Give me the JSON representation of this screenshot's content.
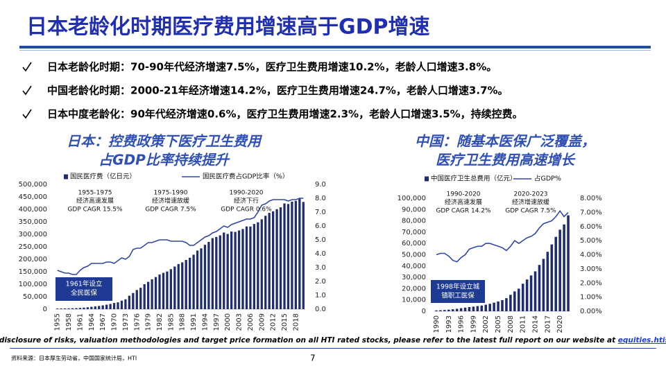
{
  "slide": {
    "title": "日本老龄化时期医疗费用增速高于GDP增速",
    "bullets": [
      "日本老龄化时期：70-90年代经济增速7.5%，医疗卫生费用增速10.2%，老龄人口增速3.8%。",
      "中国老龄化时期：2000-21年经济增速14.2%，医疗卫生费用增速24.7%，老龄人口增速3.7%。",
      "日本中度老龄化：90年代经济增速0.6%，医疗卫生费用增速2.3%，老龄人口增速3.5%，持续控费。"
    ],
    "disclaimer": "For full disclosure of risks, valuation methodologies and target price formation on all HTI rated stocks, please refer to the latest full report on our website at ",
    "link": "equities.htisec.com",
    "source": "资料来源：日本厚生劳动省，中国国家统计局，HTI",
    "page": "7"
  },
  "chart_data": [
    {
      "type": "bar-line",
      "title": [
        "日本：控费政策下医疗卫生费用",
        "占GDP比率持续提升"
      ],
      "categories": [
        "1955",
        null,
        null,
        "1958",
        null,
        null,
        "1961",
        null,
        null,
        "1964",
        null,
        null,
        "1967",
        null,
        null,
        "1970",
        null,
        null,
        "1973",
        null,
        null,
        "1976",
        null,
        null,
        "1979",
        null,
        null,
        "1982",
        null,
        null,
        "1985",
        null,
        null,
        "1988",
        null,
        null,
        "1991",
        null,
        null,
        "1994",
        null,
        null,
        "1997",
        null,
        null,
        "2000",
        null,
        null,
        "2003",
        null,
        null,
        "2006",
        null,
        null,
        "2009",
        null,
        null,
        "2012",
        null,
        null,
        "2015",
        null,
        null,
        "2018",
        null,
        null
      ],
      "series": [
        {
          "name": "国民医疗费（亿日元）",
          "color": "#1f2d6e",
          "values": [
            2388,
            2583,
            2897,
            3230,
            3625,
            4095,
            5130,
            6132,
            7541,
            9389,
            11224,
            13002,
            15116,
            18016,
            20780,
            24962,
            27250,
            33994,
            39496,
            53786,
            64779,
            76684,
            85686,
            100042,
            109510,
            119805,
            128709,
            138659,
            145438,
            150932,
            160159,
            170690,
            180759,
            187554,
            197290,
            206074,
            218260,
            234784,
            243631,
            257908,
            269577,
            284542,
            289149,
            295823,
            307019,
            301418,
            310998,
            309507,
            315375,
            321111,
            331289,
            331276,
            341360,
            348084,
            360067,
            374202,
            385850,
            392117,
            400610,
            408071,
            423644,
            421381,
            430710,
            433949,
            443895,
            429665
          ]
        },
        {
          "name": "国民医疗费占GDP比率（%）",
          "color": "#2f45a8",
          "axis": "y2",
          "values": [
            2.8,
            2.7,
            2.6,
            2.6,
            2.5,
            2.5,
            2.8,
            3.0,
            3.1,
            3.3,
            3.3,
            3.3,
            3.3,
            3.4,
            3.4,
            3.3,
            3.5,
            3.7,
            3.6,
            3.8,
            4.3,
            4.4,
            4.4,
            4.6,
            4.8,
            4.8,
            4.9,
            5.0,
            5.0,
            5.0,
            4.9,
            4.9,
            4.9,
            4.9,
            4.8,
            4.6,
            4.6,
            4.8,
            5.0,
            5.2,
            5.3,
            5.5,
            5.6,
            5.8,
            6.0,
            5.9,
            6.1,
            6.2,
            6.3,
            6.4,
            6.5,
            6.5,
            6.6,
            7.0,
            7.5,
            7.6,
            7.8,
            7.9,
            7.9,
            7.9,
            7.9,
            7.8,
            7.9,
            7.9,
            8.0,
            8.0
          ]
        }
      ],
      "ylim": [
        0,
        500000
      ],
      "yticks": [
        0,
        {
          "value": 50000,
          "label": "50,000"
        },
        {
          "value": 100000,
          "label": "100,000"
        },
        {
          "value": 150000,
          "label": "150,000"
        },
        {
          "value": 200000,
          "label": "200,000"
        },
        {
          "value": 250000,
          "label": "250,000"
        },
        {
          "value": 300000,
          "label": "300,000"
        },
        {
          "value": 350000,
          "label": "350,000"
        },
        {
          "value": 400000,
          "label": "400,000"
        },
        {
          "value": 450000,
          "label": "450,000"
        },
        {
          "value": 500000,
          "label": "500,000"
        }
      ],
      "y2lim": [
        0,
        9
      ],
      "y2ticks": [
        {
          "value": 0,
          "label": "0.0"
        },
        {
          "value": 1,
          "label": "1.0"
        },
        {
          "value": 2,
          "label": "2.0"
        },
        {
          "value": 3,
          "label": "3.0"
        },
        {
          "value": 4,
          "label": "4.0"
        },
        {
          "value": 5,
          "label": "5.0"
        },
        {
          "value": 6,
          "label": "6.0"
        },
        {
          "value": 7,
          "label": "7.0"
        },
        {
          "value": 8,
          "label": "8.0"
        },
        {
          "value": 9,
          "label": "9.0"
        }
      ],
      "annotations": [
        [
          "1955-1975",
          "经济高速发展",
          "GDP CAGR 15.5%"
        ],
        [
          "1975-1990",
          "经济增速放缓",
          "GDP CAGR 7.5%"
        ],
        [
          "1990-2020",
          "经济下行",
          "GDP CAGR 0.6%"
        ]
      ],
      "callout": [
        "1961年设立",
        "全民医保"
      ]
    },
    {
      "type": "bar-line",
      "title": [
        "中国：随基本医保广泛覆盖，",
        "医疗卫生费用高速增长"
      ],
      "categories": [
        "1990",
        null,
        null,
        "1993",
        null,
        null,
        "1996",
        null,
        null,
        "1999",
        null,
        null,
        "2002",
        null,
        null,
        "2005",
        null,
        null,
        "2008",
        null,
        null,
        "2011",
        null,
        null,
        "2014",
        null,
        null,
        "2017",
        null,
        null,
        "2020",
        null,
        null
      ],
      "series": [
        {
          "name": "中国医疗卫生总费用（亿元）",
          "color": "#1f2d6e",
          "values": [
            747,
            893,
            1097,
            1378,
            1761,
            2155,
            2709,
            3197,
            3679,
            4048,
            4587,
            5026,
            5791,
            6584,
            7590,
            8660,
            9843,
            11574,
            14535,
            17542,
            19980,
            24346,
            28119,
            31669,
            35312,
            40975,
            46345,
            52598,
            59122,
            65841,
            72175,
            76845,
            84847
          ]
        },
        {
          "name": "占GDP%",
          "color": "#2f45a8",
          "axis": "y2",
          "values": [
            4.0,
            4.1,
            4.1,
            3.9,
            3.6,
            3.5,
            3.8,
            4.0,
            4.4,
            4.5,
            4.6,
            4.6,
            4.8,
            4.8,
            4.7,
            4.6,
            4.5,
            4.3,
            4.6,
            5.0,
            4.8,
            5.0,
            5.2,
            5.3,
            5.5,
            5.9,
            6.2,
            6.3,
            6.4,
            6.7,
            7.1,
            6.7,
            7.0
          ]
        }
      ],
      "ylim": [
        0,
        100000
      ],
      "yticks": [
        0,
        {
          "value": 10000,
          "label": "10,000"
        },
        {
          "value": 20000,
          "label": "20,000"
        },
        {
          "value": 30000,
          "label": "30,000"
        },
        {
          "value": 40000,
          "label": "40,000"
        },
        {
          "value": 50000,
          "label": "50,000"
        },
        {
          "value": 60000,
          "label": "60,000"
        },
        {
          "value": 70000,
          "label": "70,000"
        },
        {
          "value": 80000,
          "label": "80,000"
        },
        {
          "value": 90000,
          "label": "90,000"
        },
        {
          "value": 100000,
          "label": "100,000"
        }
      ],
      "y2lim": [
        0,
        8
      ],
      "y2ticks": [
        {
          "value": 0,
          "label": "0.00%"
        },
        {
          "value": 1,
          "label": "1.00%"
        },
        {
          "value": 2,
          "label": "2.00%"
        },
        {
          "value": 3,
          "label": "3.00%"
        },
        {
          "value": 4,
          "label": "4.00%"
        },
        {
          "value": 5,
          "label": "5.00%"
        },
        {
          "value": 6,
          "label": "6.00%"
        },
        {
          "value": 7,
          "label": "7.00%"
        },
        {
          "value": 8,
          "label": "8.00%"
        }
      ],
      "annotations": [
        [
          "1990-2020",
          "经济高速发展",
          "GDP CAGR 14.2%"
        ],
        [
          "2020-2023",
          "经济增速放缓",
          "GDP CAGR 7.5%"
        ]
      ],
      "callout": [
        "1998年设立城",
        "镇职工医保"
      ]
    }
  ]
}
